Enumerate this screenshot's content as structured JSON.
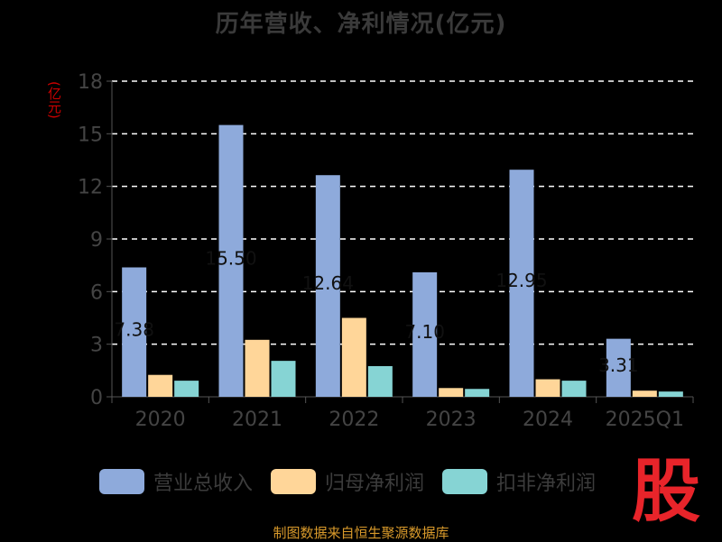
{
  "chart_data": {
    "type": "bar",
    "title": "历年营收、净利情况(亿元)",
    "unit_label": "(亿元)",
    "categories": [
      "2020",
      "2021",
      "2022",
      "2023",
      "2024",
      "2025Q1"
    ],
    "series": [
      {
        "name": "营业总收入",
        "color": "#8eaadb",
        "values": [
          7.38,
          15.5,
          12.64,
          7.1,
          12.95,
          3.31
        ]
      },
      {
        "name": "归母净利润",
        "color": "#ffd699",
        "values": [
          1.25,
          3.25,
          4.5,
          0.5,
          1.0,
          0.35
        ]
      },
      {
        "name": "扣非净利润",
        "color": "#86d4d4",
        "values": [
          0.92,
          2.05,
          1.75,
          0.45,
          0.92,
          0.3
        ]
      }
    ],
    "data_labels": [
      "7.38",
      "15.50",
      "12.64",
      "7.10",
      "12.95",
      "3.31"
    ],
    "ylim": [
      0,
      18
    ],
    "yticks": [
      0,
      3,
      6,
      9,
      12,
      15,
      18
    ],
    "grid": true,
    "legend_position": "bottom"
  },
  "source_text": "制图数据来自恒生聚源数据库",
  "logo_text": "股"
}
